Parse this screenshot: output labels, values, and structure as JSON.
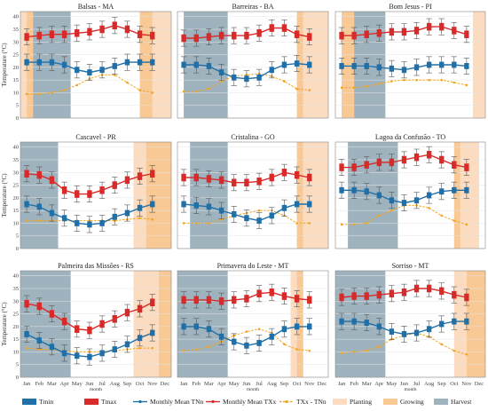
{
  "chart_data": {
    "type": "line",
    "months": [
      "Jan",
      "Feb",
      "Mar",
      "Apr",
      "May",
      "Jun",
      "Jul",
      "Aug",
      "Sep",
      "Oct",
      "Nov",
      "Dec"
    ],
    "ylabel": "Temperature (°C)",
    "xlabel": "month",
    "ylim": [
      0,
      42
    ],
    "yticks": [
      0,
      5,
      10,
      15,
      20,
      25,
      30,
      35,
      40
    ],
    "legend": {
      "tmin": "Tmin",
      "tmax": "Tmax",
      "mean_tn": "Monthly Mean TNn",
      "mean_tx": "Monthly Mean TXx",
      "diff": "TXx - TNn",
      "planting": "Planting",
      "growing": "Growing",
      "harvest": "Harvest"
    },
    "colors": {
      "tmin": "#1f6fa8",
      "tmax": "#d92a2a",
      "diff": "#f2a51e",
      "planting": "#fbdcc1",
      "growing": "#f8c895",
      "harvest": "#9fb3bf"
    },
    "panels": [
      {
        "title": "Balsas - MA",
        "tmax": [
          32,
          32.5,
          33,
          33,
          33.5,
          34,
          35,
          36.5,
          35,
          33,
          32.5,
          null
        ],
        "tmin": [
          22,
          22,
          22,
          21,
          19,
          18,
          19,
          20.5,
          22,
          22,
          22,
          null
        ],
        "diff": [
          9.5,
          9.5,
          10,
          11,
          13,
          15.5,
          17,
          17,
          14,
          11,
          10,
          null
        ],
        "seasons": {
          "planting": [
            [
              0,
              0.5
            ],
            [
              10.5,
              12
            ]
          ],
          "growing": [
            [
              0.5,
              1
            ],
            [
              9.5,
              10.5
            ]
          ],
          "harvest": [
            [
              1,
              4
            ]
          ]
        }
      },
      {
        "title": "Barreiras - BA",
        "tmax": [
          31.5,
          31.5,
          32,
          32.5,
          32.5,
          32.5,
          33.5,
          35.5,
          35.5,
          33,
          32,
          null
        ],
        "tmin": [
          21,
          21,
          20.5,
          18,
          16,
          15.5,
          16,
          19,
          21,
          21.5,
          21,
          null
        ],
        "diff": [
          10.5,
          10.5,
          11.5,
          14.5,
          16.5,
          17,
          17.5,
          16.5,
          14.5,
          11.5,
          11,
          null
        ],
        "seasons": {
          "planting": [
            [
              10,
              12
            ]
          ],
          "growing": [
            [
              9.5,
              10
            ]
          ],
          "harvest": [
            [
              0.5,
              4
            ]
          ]
        }
      },
      {
        "title": "Bom Jesus - PI",
        "tmax": [
          32.5,
          32.5,
          33,
          33.5,
          34,
          34,
          34.5,
          36,
          36,
          34.5,
          33,
          null
        ],
        "tmin": [
          20.5,
          20.5,
          20.5,
          20,
          19.5,
          19,
          20,
          21,
          21,
          21,
          20.5,
          null
        ],
        "diff": [
          12,
          12,
          12.5,
          13.5,
          14.5,
          15,
          15,
          15,
          15,
          14,
          13,
          null
        ],
        "seasons": {
          "planting": [
            [
              11,
              12
            ]
          ],
          "growing": [
            [
              0.5,
              1.5
            ]
          ],
          "harvest": [
            [
              1.5,
              4
            ]
          ]
        }
      },
      {
        "title": "Cascavel - PR",
        "tmax": [
          29.5,
          29,
          27,
          23,
          21.5,
          21.5,
          23,
          25,
          27,
          28.5,
          29.5,
          null
        ],
        "tmin": [
          17.5,
          16.5,
          14,
          12,
          10,
          9.5,
          10,
          12.5,
          14,
          16,
          17.5,
          null
        ],
        "diff": [
          11,
          11,
          11,
          11,
          11,
          11,
          11,
          11,
          11.5,
          12,
          11.5,
          null
        ],
        "seasons": {
          "planting": [
            [
              9,
              10
            ]
          ],
          "growing": [
            [
              10,
              12
            ]
          ],
          "harvest": [
            [
              0,
              3
            ]
          ]
        }
      },
      {
        "title": "Cristalina - GO",
        "tmax": [
          28,
          28,
          27.5,
          27,
          26,
          26,
          26.5,
          28,
          30,
          29,
          28,
          null
        ],
        "tmin": [
          17.5,
          17,
          16.5,
          15,
          13.5,
          12,
          11,
          13,
          16,
          17.5,
          17.5,
          null
        ],
        "diff": [
          10,
          10,
          10,
          11.5,
          13,
          14,
          15,
          15,
          13,
          10,
          10,
          null
        ],
        "seasons": {
          "planting": [
            [
              10,
              12
            ]
          ],
          "growing": [
            [
              9.5,
              10
            ]
          ],
          "harvest": [
            [
              1,
              4
            ]
          ]
        }
      },
      {
        "title": "Lagoa da Confusão - TO",
        "tmax": [
          32,
          32,
          33,
          34,
          34,
          35,
          36,
          37,
          35,
          33,
          32,
          null
        ],
        "tmin": [
          23,
          23,
          22.5,
          21,
          19,
          18,
          19,
          21,
          22.5,
          23,
          23,
          null
        ],
        "diff": [
          9.5,
          9.5,
          10,
          13,
          15,
          17,
          17,
          16,
          13,
          11,
          9.5,
          null
        ],
        "seasons": {
          "planting": [
            [
              10,
              11.5
            ]
          ],
          "growing": [
            [
              9.5,
              10
            ]
          ],
          "harvest": [
            [
              1,
              5
            ]
          ]
        }
      },
      {
        "title": "Palmeira das Missões - RS",
        "tmax": [
          29,
          28,
          25,
          22,
          19,
          18.5,
          21,
          23,
          25.5,
          27,
          29.5,
          null
        ],
        "tmin": [
          17,
          14.5,
          12,
          9.5,
          8.5,
          8,
          9.5,
          11,
          13,
          15.5,
          17.5,
          null
        ],
        "diff": [
          11.5,
          11,
          11,
          10.5,
          10,
          10,
          10,
          10.5,
          11,
          11.5,
          11.5,
          null
        ],
        "seasons": {
          "planting": [
            [
              9,
              11
            ]
          ],
          "growing": [
            [
              11,
              12
            ]
          ],
          "harvest": [
            [
              0,
              4
            ]
          ]
        }
      },
      {
        "title": "Primavera do Leste - MT",
        "tmax": [
          30.5,
          30.5,
          30.5,
          30,
          30.5,
          31,
          33,
          33.5,
          32,
          31,
          30.5,
          null
        ],
        "tmin": [
          20,
          20,
          19,
          16,
          14,
          12.5,
          13.5,
          16,
          19,
          20,
          20,
          null
        ],
        "diff": [
          10.5,
          11,
          12,
          14,
          16.5,
          18,
          19,
          17.5,
          13,
          11,
          10.5,
          null
        ],
        "seasons": {
          "planting": [
            [
              9,
              10
            ]
          ],
          "growing": [
            [
              9.5,
              10
            ]
          ],
          "harvest": [
            [
              0,
              4
            ]
          ]
        }
      },
      {
        "title": "Sorriso - MT",
        "tmax": [
          31.5,
          32,
          32,
          32.5,
          33,
          33.5,
          35,
          35,
          34,
          32.5,
          31.5,
          null
        ],
        "tmin": [
          22,
          22,
          21.5,
          20,
          18,
          17,
          17.5,
          19,
          21,
          22,
          22,
          null
        ],
        "diff": [
          9.5,
          10,
          10.5,
          12,
          15,
          16.5,
          17.5,
          16,
          13,
          10.5,
          9,
          null
        ],
        "seasons": {
          "planting": [
            [
              9.5,
              10.5
            ]
          ],
          "growing": [
            [
              10.5,
              12
            ]
          ],
          "harvest": [
            [
              0,
              4
            ]
          ]
        }
      }
    ]
  }
}
